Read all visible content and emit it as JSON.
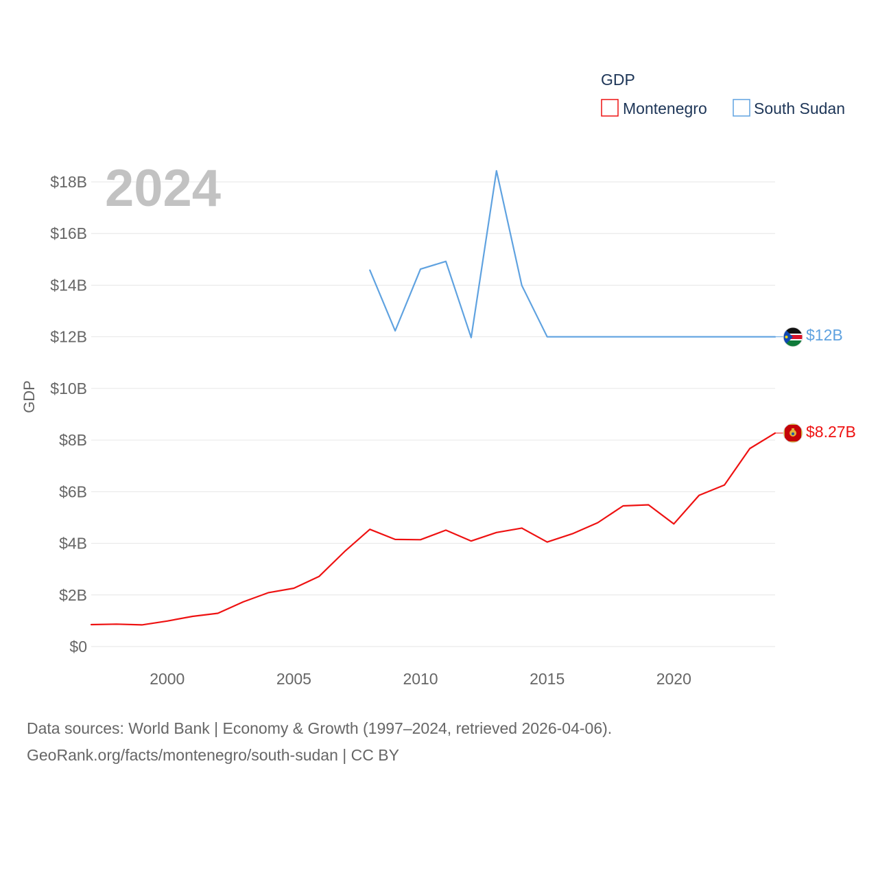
{
  "chart_data": {
    "type": "line",
    "year_label": "2024",
    "legend_title": "GDP",
    "ylabel": "GDP",
    "ylim": [
      0,
      18000000000
    ],
    "y_ticks": [
      {
        "value": 0,
        "label": "$0"
      },
      {
        "value": 2000000000,
        "label": "$2B"
      },
      {
        "value": 4000000000,
        "label": "$4B"
      },
      {
        "value": 6000000000,
        "label": "$6B"
      },
      {
        "value": 8000000000,
        "label": "$8B"
      },
      {
        "value": 10000000000,
        "label": "$10B"
      },
      {
        "value": 12000000000,
        "label": "$12B"
      },
      {
        "value": 14000000000,
        "label": "$14B"
      },
      {
        "value": 16000000000,
        "label": "$16B"
      },
      {
        "value": 18000000000,
        "label": "$18B"
      }
    ],
    "xlim": [
      1997,
      2024
    ],
    "x_ticks": [
      {
        "value": 2000,
        "label": "2000"
      },
      {
        "value": 2005,
        "label": "2005"
      },
      {
        "value": 2010,
        "label": "2010"
      },
      {
        "value": 2015,
        "label": "2015"
      },
      {
        "value": 2020,
        "label": "2020"
      }
    ],
    "series": [
      {
        "name": "Montenegro",
        "color": "#ee1111",
        "end_label": "$8.27B",
        "flag": "montenegro-flag",
        "points": [
          [
            1997,
            850000000
          ],
          [
            1998,
            870000000
          ],
          [
            1999,
            840000000
          ],
          [
            2000,
            990000000
          ],
          [
            2001,
            1170000000
          ],
          [
            2002,
            1290000000
          ],
          [
            2003,
            1730000000
          ],
          [
            2004,
            2090000000
          ],
          [
            2005,
            2260000000
          ],
          [
            2006,
            2720000000
          ],
          [
            2007,
            3680000000
          ],
          [
            2008,
            4540000000
          ],
          [
            2009,
            4150000000
          ],
          [
            2010,
            4140000000
          ],
          [
            2011,
            4510000000
          ],
          [
            2012,
            4090000000
          ],
          [
            2013,
            4420000000
          ],
          [
            2014,
            4590000000
          ],
          [
            2015,
            4050000000
          ],
          [
            2016,
            4370000000
          ],
          [
            2017,
            4800000000
          ],
          [
            2018,
            5450000000
          ],
          [
            2019,
            5490000000
          ],
          [
            2020,
            4750000000
          ],
          [
            2021,
            5860000000
          ],
          [
            2022,
            6260000000
          ],
          [
            2023,
            7670000000
          ],
          [
            2024,
            8270000000
          ]
        ]
      },
      {
        "name": "South Sudan",
        "color": "#5fa2e0",
        "end_label": "$12B",
        "flag": "south-sudan-flag",
        "points": [
          [
            2008,
            14580000000
          ],
          [
            2009,
            12230000000
          ],
          [
            2010,
            14620000000
          ],
          [
            2011,
            14920000000
          ],
          [
            2012,
            11970000000
          ],
          [
            2013,
            18430000000
          ],
          [
            2014,
            13990000000
          ],
          [
            2015,
            12000000000
          ],
          [
            2016,
            12000000000
          ],
          [
            2017,
            12000000000
          ],
          [
            2018,
            12000000000
          ],
          [
            2019,
            12000000000
          ],
          [
            2020,
            12000000000
          ],
          [
            2021,
            12000000000
          ],
          [
            2022,
            12000000000
          ],
          [
            2023,
            12000000000
          ],
          [
            2024,
            12000000000
          ]
        ]
      }
    ]
  },
  "footer": {
    "line1": "Data sources: World Bank | Economy & Growth (1997–2024, retrieved 2026-04-06).",
    "line2": "GeoRank.org/facts/montenegro/south-sudan | CC BY"
  }
}
